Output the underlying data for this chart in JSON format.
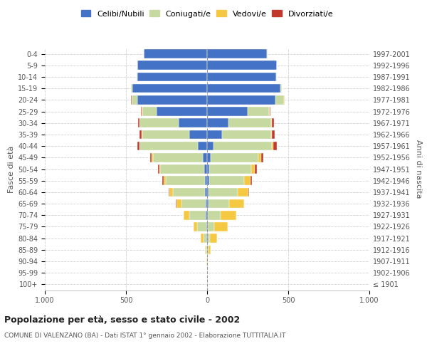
{
  "age_groups": [
    "100+",
    "95-99",
    "90-94",
    "85-89",
    "80-84",
    "75-79",
    "70-74",
    "65-69",
    "60-64",
    "55-59",
    "50-54",
    "45-49",
    "40-44",
    "35-39",
    "30-34",
    "25-29",
    "20-24",
    "15-19",
    "10-14",
    "5-9",
    "0-4"
  ],
  "birth_years": [
    "≤ 1901",
    "1902-1906",
    "1907-1911",
    "1912-1916",
    "1917-1921",
    "1922-1926",
    "1927-1931",
    "1932-1936",
    "1937-1941",
    "1942-1946",
    "1947-1951",
    "1952-1956",
    "1957-1961",
    "1962-1966",
    "1967-1971",
    "1972-1976",
    "1977-1981",
    "1982-1986",
    "1987-1991",
    "1992-1996",
    "1997-2001"
  ],
  "males_celibi": [
    0,
    0,
    0,
    2,
    3,
    5,
    8,
    10,
    12,
    15,
    18,
    25,
    55,
    110,
    175,
    310,
    430,
    460,
    430,
    430,
    390
  ],
  "males_coniugati": [
    0,
    0,
    2,
    8,
    20,
    55,
    100,
    150,
    200,
    240,
    270,
    310,
    360,
    290,
    240,
    90,
    35,
    10,
    5,
    2,
    2
  ],
  "males_vedovi": [
    0,
    0,
    1,
    5,
    15,
    25,
    35,
    30,
    20,
    12,
    8,
    5,
    3,
    2,
    2,
    2,
    2,
    0,
    0,
    0,
    0
  ],
  "males_divorziati": [
    0,
    0,
    0,
    0,
    0,
    0,
    0,
    3,
    5,
    8,
    8,
    12,
    12,
    15,
    10,
    5,
    2,
    0,
    0,
    0,
    0
  ],
  "females_celibi": [
    0,
    0,
    0,
    2,
    3,
    5,
    5,
    8,
    10,
    12,
    15,
    22,
    40,
    90,
    130,
    250,
    420,
    450,
    425,
    430,
    370
  ],
  "females_coniugati": [
    0,
    0,
    2,
    5,
    15,
    40,
    80,
    130,
    180,
    215,
    255,
    295,
    360,
    305,
    265,
    130,
    55,
    12,
    5,
    2,
    2
  ],
  "females_vedovi": [
    0,
    0,
    2,
    15,
    45,
    80,
    95,
    90,
    65,
    40,
    25,
    15,
    10,
    5,
    5,
    5,
    2,
    0,
    0,
    0,
    0
  ],
  "females_divorziati": [
    0,
    0,
    0,
    0,
    0,
    0,
    0,
    2,
    5,
    8,
    12,
    15,
    18,
    18,
    12,
    5,
    3,
    0,
    0,
    0,
    0
  ],
  "color_celibi": "#4472c4",
  "color_coniugati": "#c5d9a0",
  "color_vedovi": "#f5c842",
  "color_divorziati": "#c0392b",
  "title": "Popolazione per età, sesso e stato civile - 2002",
  "subtitle": "COMUNE DI VALENZANO (BA) - Dati ISTAT 1° gennaio 2002 - Elaborazione TUTTITALIA.IT",
  "ylabel_left": "Fasce di età",
  "ylabel_right": "Anni di nascita",
  "xlim": 1000,
  "xticks": [
    -1000,
    -500,
    0,
    500,
    1000
  ],
  "xticklabels": [
    "1.000",
    "500",
    "0",
    "500",
    "1.000"
  ],
  "background_color": "#ffffff",
  "grid_color": "#cccccc"
}
